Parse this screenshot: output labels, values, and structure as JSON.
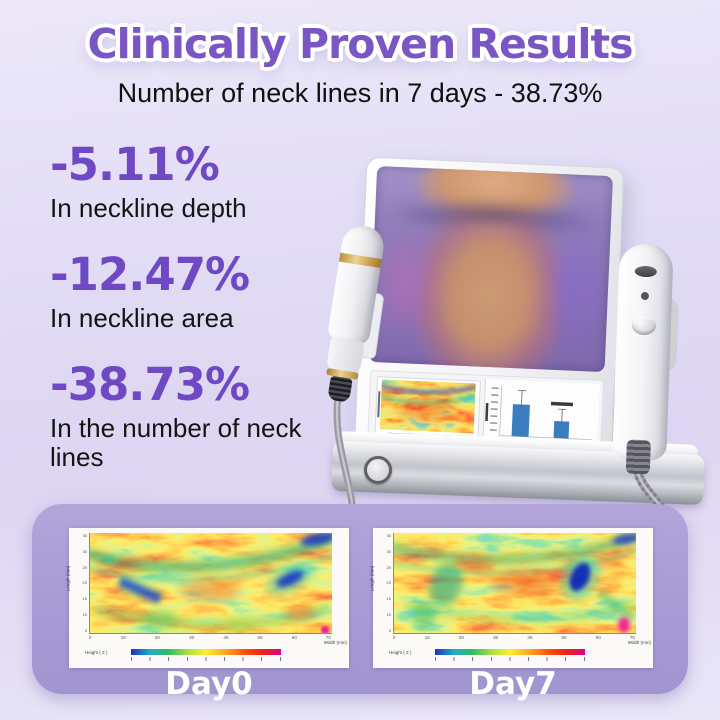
{
  "header": {
    "title": "Clinically Proven Results",
    "subtitle": "Number of neck lines in 7 days - 38.73%",
    "title_color": "#7A56C5"
  },
  "stats": [
    {
      "value": "-5.11%",
      "label": "In neckline depth"
    },
    {
      "value": "-12.47%",
      "label": "In neckline area"
    },
    {
      "value": "-38.73%",
      "label": "In the number of neck lines"
    }
  ],
  "device": {
    "screen_content": "neck-scan-visualization",
    "mini_chart": {
      "type": "bar",
      "bar_color": "#3C7DC0",
      "bar_count": 2
    }
  },
  "comparison": {
    "panel_color": "#A89BD5",
    "labels": {
      "day0": "Day0",
      "day7": "Day7"
    },
    "figure": {
      "xlabel": "Width (mm)",
      "ylabel": "Length (mm)",
      "colorbar_label": "Height ( Z )",
      "x_ticks": [
        "0",
        "10",
        "20",
        "30",
        "40",
        "50",
        "60",
        "70"
      ],
      "y_ticks": [
        "35",
        "30",
        "25",
        "20",
        "15",
        "10",
        "5"
      ],
      "colormap": [
        "#2233BB",
        "#22AACC",
        "#33BB66",
        "#AADD44",
        "#FFEE33",
        "#FFAA22",
        "#FF5511",
        "#EE2211",
        "#DD0088"
      ]
    }
  },
  "colors": {
    "background": "#E0DBF5",
    "stat_accent": "#6F49C4",
    "text": "#141414",
    "day_label": "#FFFFFF"
  }
}
